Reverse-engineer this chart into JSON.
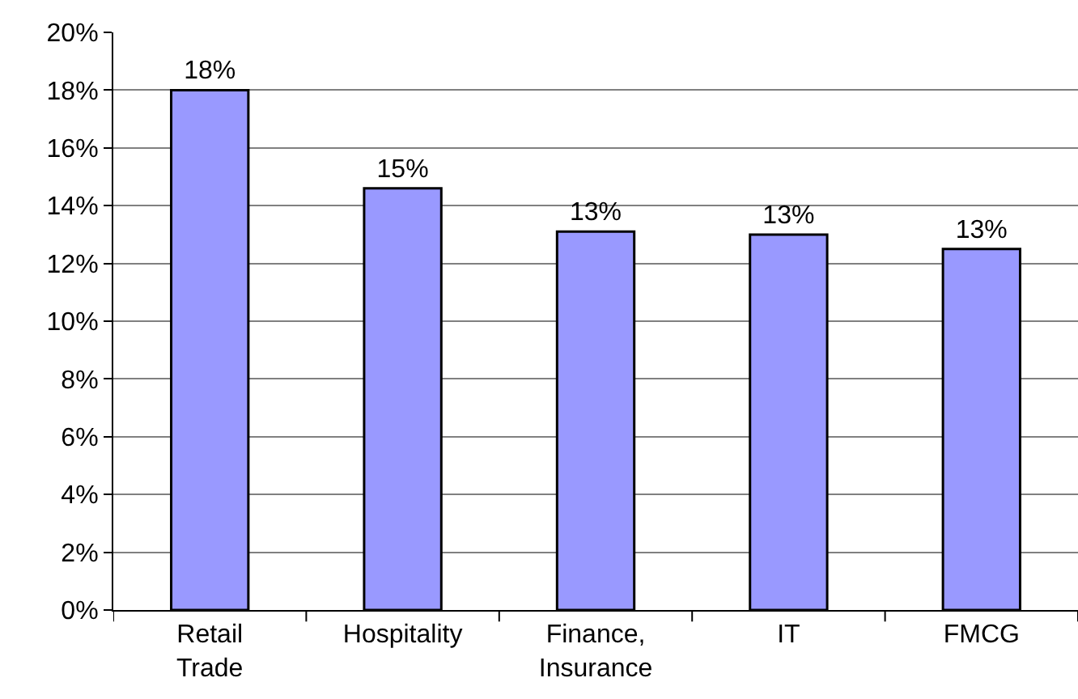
{
  "chart_data": {
    "type": "bar",
    "categories": [
      "Retail Trade",
      "Hospitality",
      "Finance, Insurance",
      "IT",
      "FMCG"
    ],
    "values": [
      18,
      14.6,
      13.1,
      13.0,
      12.5
    ],
    "value_labels": [
      "18%",
      "15%",
      "13%",
      "13%",
      "13%"
    ],
    "color": "#9999ff",
    "ylim": [
      0,
      20
    ],
    "yticks": [
      {
        "value": 0,
        "label": "0%"
      },
      {
        "value": 2,
        "label": "2%"
      },
      {
        "value": 4,
        "label": "4%"
      },
      {
        "value": 6,
        "label": "6%"
      },
      {
        "value": 8,
        "label": "8%"
      },
      {
        "value": 10,
        "label": "10%"
      },
      {
        "value": 12,
        "label": "12%"
      },
      {
        "value": 14,
        "label": "14%"
      },
      {
        "value": 16,
        "label": "16%"
      },
      {
        "value": 18,
        "label": "18%"
      },
      {
        "value": 20,
        "label": "20%"
      }
    ],
    "grid": "y",
    "legend": false
  }
}
